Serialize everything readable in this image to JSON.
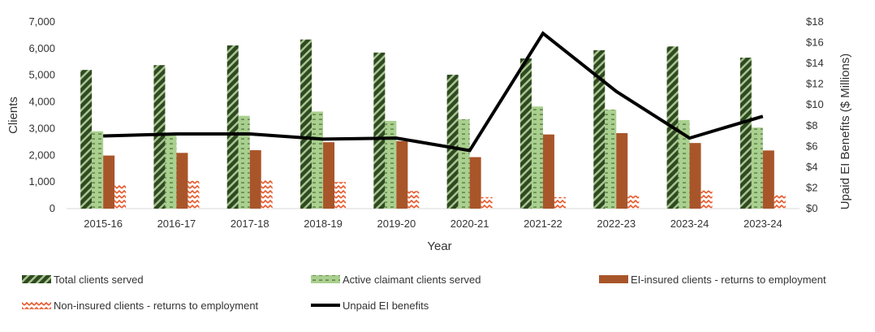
{
  "chart_data": {
    "type": "bar",
    "categories": [
      "2015-16",
      "2016-17",
      "2017-18",
      "2018-19",
      "2019-20",
      "2020-21",
      "2021-22",
      "2022-23",
      "2023-24",
      "2023-24"
    ],
    "series": [
      {
        "name": "Total clients served",
        "type": "bar",
        "axis": "left",
        "color": "#2e4a22",
        "values": [
          5200,
          5380,
          6120,
          6340,
          5850,
          5020,
          5630,
          5940,
          6080,
          5660
        ]
      },
      {
        "name": "Active claimant clients served",
        "type": "bar",
        "axis": "left",
        "color": "#a9d08e",
        "values": [
          2900,
          2780,
          3480,
          3640,
          3290,
          3350,
          3830,
          3710,
          3320,
          3040
        ]
      },
      {
        "name": "EI-insured clients - returns to employment",
        "type": "bar",
        "axis": "left",
        "color": "#a9552a",
        "values": [
          1990,
          2090,
          2190,
          2490,
          2530,
          1930,
          2780,
          2830,
          2460,
          2180
        ]
      },
      {
        "name": "Non-insured clients - returns to employment",
        "type": "bar",
        "axis": "left",
        "color": "#e8582a",
        "values": [
          880,
          1040,
          1110,
          1000,
          660,
          430,
          430,
          490,
          680,
          500
        ]
      },
      {
        "name": "Unpaid EI benefits",
        "type": "line",
        "axis": "right",
        "color": "#000000",
        "values": [
          7.0,
          7.2,
          7.2,
          6.7,
          6.8,
          5.6,
          16.9,
          11.3,
          6.8,
          8.9
        ]
      }
    ],
    "xlabel": "Year",
    "ylabel": "Clients",
    "y2label": "Upaid EI Benefits ($ Millions)",
    "ylim": [
      0,
      7000
    ],
    "y2lim": [
      0,
      18
    ],
    "y_ticks": [
      "0",
      "1,000",
      "2,000",
      "3,000",
      "4,000",
      "5,000",
      "6,000",
      "7,000"
    ],
    "y2_ticks": [
      "$0",
      "$2",
      "$4",
      "$6",
      "$8",
      "$10",
      "$12",
      "$14",
      "$16",
      "$18"
    ],
    "grid": false,
    "legend_position": "bottom"
  }
}
